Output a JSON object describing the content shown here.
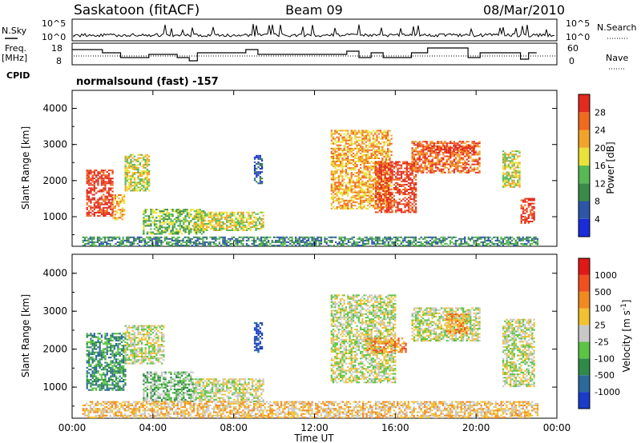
{
  "header": {
    "station": "Saskatoon (fitACF)",
    "beam": "Beam 09",
    "date": "08/Mar/2010"
  },
  "noise_panel": {
    "left_label": "N.Sky",
    "right_label": "N.Search",
    "left_ticks": [
      "10^5",
      "10^0"
    ],
    "right_ticks": [
      "10^5",
      "10^0"
    ]
  },
  "freq_panel": {
    "left_label_line1": "Freq.",
    "left_label_line2": "[MHz]",
    "right_label": "Nave",
    "left_ticks": [
      "18",
      "8"
    ],
    "right_ticks": [
      "60",
      "0"
    ]
  },
  "cpid": {
    "label": "CPID",
    "value": "normalsound (fast) -157"
  },
  "x_axis": {
    "title": "Time UT",
    "tick_labels": [
      "00:00",
      "04:00",
      "08:00",
      "12:00",
      "16:00",
      "20:00",
      "00:00"
    ]
  },
  "chart_data": [
    {
      "type": "heatmap",
      "name": "power",
      "xlabel": "Time UT",
      "ylabel": "Slant Range [km]",
      "y_ticks": [
        "1000",
        "2000",
        "3000",
        "4000"
      ],
      "ylim": [
        180,
        4500
      ],
      "xlim": [
        "00:00",
        "24:00"
      ],
      "colorbar": {
        "label": "Power [dB]",
        "ticks": [
          "4",
          "8",
          "12",
          "16",
          "20",
          "24",
          "28"
        ],
        "colors": [
          "#1a2bd9",
          "#2d55a8",
          "#3a8a4a",
          "#58b854",
          "#e8e23a",
          "#f2a42a",
          "#f06a20",
          "#e22b1e"
        ]
      },
      "regions": [
        {
          "t": [
            0.7,
            2.0
          ],
          "r": [
            1000,
            2300
          ],
          "level": 7
        },
        {
          "t": [
            2.0,
            2.6
          ],
          "r": [
            900,
            1600
          ],
          "level": 5
        },
        {
          "t": [
            2.6,
            3.8
          ],
          "r": [
            1700,
            2700
          ],
          "level": 4
        },
        {
          "t": [
            3.5,
            6.5
          ],
          "r": [
            500,
            1200
          ],
          "level": 3
        },
        {
          "t": [
            6.0,
            9.5
          ],
          "r": [
            600,
            1100
          ],
          "level": 4
        },
        {
          "t": [
            9.0,
            9.4
          ],
          "r": [
            1900,
            2700
          ],
          "level": 1
        },
        {
          "t": [
            12.8,
            15.8
          ],
          "r": [
            1200,
            3400
          ],
          "level": 5
        },
        {
          "t": [
            15.0,
            17.0
          ],
          "r": [
            1100,
            2500
          ],
          "level": 7
        },
        {
          "t": [
            16.8,
            20.2
          ],
          "r": [
            2200,
            3100
          ],
          "level": 6
        },
        {
          "t": [
            17.5,
            20.0
          ],
          "r": [
            2750,
            2950
          ],
          "level": 7
        },
        {
          "t": [
            21.3,
            22.2
          ],
          "r": [
            1800,
            2800
          ],
          "level": 4
        },
        {
          "t": [
            22.2,
            22.9
          ],
          "r": [
            800,
            1500
          ],
          "level": 7
        },
        {
          "t": [
            0.5,
            23.0
          ],
          "r": [
            180,
            450
          ],
          "level": 2
        }
      ]
    },
    {
      "type": "heatmap",
      "name": "velocity",
      "xlabel": "Time UT",
      "ylabel": "Slant Range [km]",
      "y_ticks": [
        "1000",
        "2000",
        "3000",
        "4000"
      ],
      "ylim": [
        180,
        4500
      ],
      "xlim": [
        "00:00",
        "24:00"
      ],
      "colorbar": {
        "label": "Velocity [m s-1]",
        "ticks": [
          "1000",
          "500",
          "100",
          "25",
          "-25",
          "-100",
          "-500",
          "-1000"
        ],
        "colors": [
          "#1a3cc8",
          "#2a6a9a",
          "#2f8a4a",
          "#5cc444",
          "#c8c8c8",
          "#f2c030",
          "#f08a20",
          "#f05020",
          "#e01818"
        ]
      },
      "regions": [
        {
          "t": [
            0.7,
            2.6
          ],
          "r": [
            900,
            2400
          ],
          "level": 2
        },
        {
          "t": [
            2.6,
            4.5
          ],
          "r": [
            1600,
            2600
          ],
          "level": 4
        },
        {
          "t": [
            3.5,
            6.0
          ],
          "r": [
            600,
            1400
          ],
          "level": 3
        },
        {
          "t": [
            6.0,
            9.5
          ],
          "r": [
            600,
            1200
          ],
          "level": 4
        },
        {
          "t": [
            9.0,
            9.4
          ],
          "r": [
            1900,
            2700
          ],
          "level": 0
        },
        {
          "t": [
            12.8,
            16.0
          ],
          "r": [
            1100,
            3400
          ],
          "level": 4
        },
        {
          "t": [
            14.5,
            16.5
          ],
          "r": [
            1900,
            2300
          ],
          "level": 6
        },
        {
          "t": [
            16.8,
            20.2
          ],
          "r": [
            2200,
            3100
          ],
          "level": 4
        },
        {
          "t": [
            18.5,
            19.5
          ],
          "r": [
            2400,
            2900
          ],
          "level": 6
        },
        {
          "t": [
            21.3,
            22.9
          ],
          "r": [
            1000,
            2800
          ],
          "level": 4
        },
        {
          "t": [
            0.5,
            23.0
          ],
          "r": [
            180,
            600
          ],
          "level": 5
        }
      ]
    }
  ]
}
